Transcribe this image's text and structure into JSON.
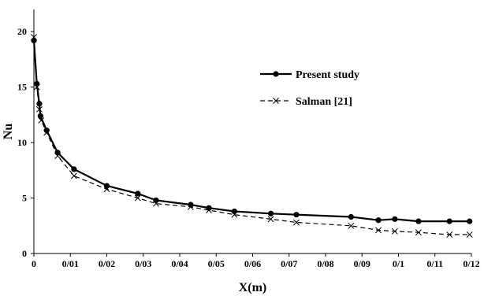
{
  "chart_data": {
    "type": "line",
    "xlabel": "X(m)",
    "ylabel": "Nu",
    "xlim": [
      0,
      0.12
    ],
    "ylim": [
      0,
      22
    ],
    "x_ticks": [
      0,
      0.01,
      0.02,
      0.03,
      0.04,
      0.05,
      0.06,
      0.07,
      0.08,
      0.09,
      0.1,
      0.11,
      0.12
    ],
    "x_tick_labels": [
      "0",
      "0/01",
      "0/02",
      "0/03",
      "0/04",
      "0/05",
      "0/06",
      "0/07",
      "0/08",
      "0/09",
      "0/1",
      "0/11",
      "0/12"
    ],
    "y_ticks": [
      0,
      5,
      10,
      15,
      20
    ],
    "y_tick_labels": [
      "0",
      "5",
      "10",
      "15",
      "20"
    ],
    "grid": false,
    "legend_position": "right",
    "series": [
      {
        "name": "Present study",
        "color": "#000000",
        "style": "solid",
        "marker": "circle",
        "x": [
          0,
          0.0008,
          0.0015,
          0.0018,
          0.0035,
          0.0065,
          0.011,
          0.02,
          0.0285,
          0.0335,
          0.043,
          0.048,
          0.055,
          0.065,
          0.072,
          0.087,
          0.0945,
          0.099,
          0.1055,
          0.114,
          0.1195
        ],
        "y": [
          19.2,
          15.3,
          13.5,
          12.4,
          11.1,
          9.1,
          7.6,
          6.1,
          5.4,
          4.8,
          4.4,
          4.1,
          3.8,
          3.6,
          3.5,
          3.3,
          3.0,
          3.1,
          2.9,
          2.9,
          2.9
        ]
      },
      {
        "name": "Salman [21]",
        "color": "#000000",
        "style": "dashed",
        "marker": "x",
        "x": [
          0,
          0.0008,
          0.0015,
          0.002,
          0.0035,
          0.0065,
          0.011,
          0.02,
          0.0285,
          0.0335,
          0.043,
          0.048,
          0.055,
          0.065,
          0.072,
          0.087,
          0.0945,
          0.099,
          0.1055,
          0.114,
          0.1195
        ],
        "y": [
          19.5,
          15.0,
          13.0,
          12.0,
          10.9,
          8.8,
          7.0,
          5.8,
          5.0,
          4.5,
          4.2,
          3.9,
          3.5,
          3.1,
          2.8,
          2.5,
          2.1,
          2.0,
          1.9,
          1.7,
          1.7
        ]
      }
    ]
  }
}
